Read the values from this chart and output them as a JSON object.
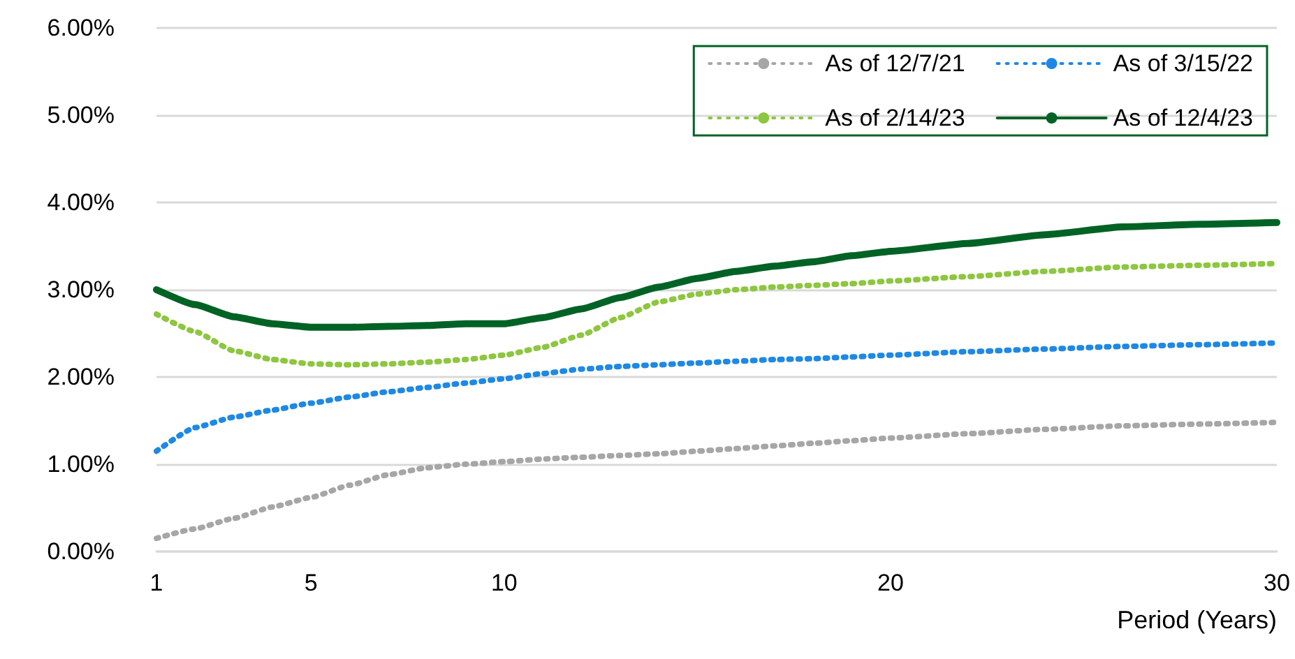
{
  "chart_data": {
    "type": "line",
    "xlabel": "Period (Years)",
    "x": [
      1,
      2,
      3,
      4,
      5,
      6,
      7,
      8,
      9,
      10,
      11,
      12,
      13,
      14,
      15,
      16,
      17,
      18,
      19,
      20,
      22,
      24,
      26,
      28,
      30
    ],
    "series": [
      {
        "name": "As of 12/7/21",
        "color": "#a6a6a6",
        "line_style": "dotted",
        "values": [
          0.15,
          0.26,
          0.38,
          0.51,
          0.62,
          0.76,
          0.88,
          0.96,
          1.0,
          1.03,
          1.06,
          1.08,
          1.1,
          1.12,
          1.15,
          1.18,
          1.21,
          1.24,
          1.27,
          1.3,
          1.35,
          1.4,
          1.44,
          1.46,
          1.48
        ]
      },
      {
        "name": "As of 3/15/22",
        "color": "#1e88e5",
        "line_style": "dotted",
        "values": [
          1.15,
          1.42,
          1.54,
          1.62,
          1.7,
          1.77,
          1.83,
          1.88,
          1.93,
          1.98,
          2.04,
          2.09,
          2.12,
          2.14,
          2.16,
          2.18,
          2.2,
          2.21,
          2.23,
          2.25,
          2.29,
          2.32,
          2.35,
          2.37,
          2.39
        ]
      },
      {
        "name": "As of 2/14/23",
        "color": "#8dc63f",
        "line_style": "dotted",
        "values": [
          2.72,
          2.52,
          2.3,
          2.2,
          2.15,
          2.14,
          2.15,
          2.17,
          2.2,
          2.25,
          2.34,
          2.48,
          2.68,
          2.86,
          2.95,
          3.0,
          3.03,
          3.05,
          3.07,
          3.1,
          3.15,
          3.21,
          3.26,
          3.28,
          3.3
        ]
      },
      {
        "name": "As of 12/4/23",
        "color": "#006325",
        "line_style": "solid",
        "values": [
          3.0,
          2.83,
          2.69,
          2.61,
          2.57,
          2.57,
          2.58,
          2.59,
          2.61,
          2.61,
          2.68,
          2.78,
          2.91,
          3.03,
          3.13,
          3.21,
          3.27,
          3.32,
          3.39,
          3.44,
          3.53,
          3.63,
          3.72,
          3.75,
          3.77
        ]
      }
    ],
    "xlim": [
      1,
      30
    ],
    "xticks": [
      1,
      5,
      10,
      20,
      30
    ],
    "ylim": [
      0,
      6
    ],
    "yticks": [
      {
        "value": 0,
        "label": "0.00%"
      },
      {
        "value": 1,
        "label": "1.00%"
      },
      {
        "value": 2,
        "label": "2.00%"
      },
      {
        "value": 3,
        "label": "3.00%"
      },
      {
        "value": 4,
        "label": "4.00%"
      },
      {
        "value": 5,
        "label": "5.00%"
      },
      {
        "value": 6,
        "label": "6.00%"
      }
    ],
    "grid": "y",
    "legend": "top right",
    "marker": "none"
  }
}
